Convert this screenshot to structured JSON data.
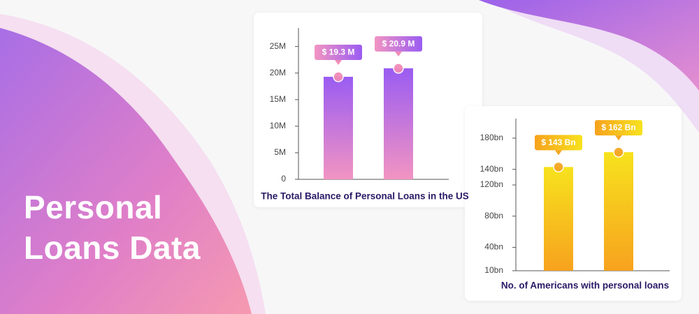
{
  "title": "Personal Loans Data",
  "chart_data": [
    {
      "type": "bar",
      "title": "The Total Balance of Personal Loans in the US",
      "categories": [
        null,
        null
      ],
      "values": [
        19.3,
        20.9
      ],
      "value_labels": [
        "$ 19.3 M",
        "$ 20.9 M"
      ],
      "color": [
        "#9a5cf2",
        "#f294c2"
      ],
      "marker_color": "#f28cb8",
      "ylim": [
        0,
        28.5
      ],
      "yticks": [
        0,
        {
          "value": 5,
          "label": "5M"
        },
        {
          "value": 10,
          "label": "10M"
        },
        {
          "value": 15,
          "label": "15M"
        },
        {
          "value": 20,
          "label": "20M"
        },
        {
          "value": 25,
          "label": "25M"
        }
      ]
    },
    {
      "type": "bar",
      "title": "No. of Americans with personal loans",
      "categories": [
        null,
        null
      ],
      "values": [
        143,
        162
      ],
      "value_labels": [
        "$ 143 Bn",
        "$ 162 Bn"
      ],
      "color": [
        "#f7e21e",
        "#f7a21e"
      ],
      "marker_color": "#f5a623",
      "ylim": [
        10,
        205
      ],
      "yticks": [
        {
          "value": 10,
          "label": "10bn"
        },
        {
          "value": 40,
          "label": "40bn"
        },
        {
          "value": 80,
          "label": "80bn"
        },
        {
          "value": 120,
          "label": "120bn"
        },
        {
          "value": 140,
          "label": "140bn"
        },
        {
          "value": 180,
          "label": "180bn"
        }
      ]
    }
  ]
}
